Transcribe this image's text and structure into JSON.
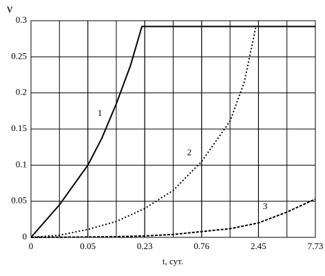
{
  "chart_data": {
    "type": "line",
    "y_label": "ν",
    "x_label": "t, сут.",
    "xlim": [
      0,
      10
    ],
    "ylim": [
      0,
      0.3
    ],
    "xticks": [
      {
        "value": 0,
        "label": "0"
      },
      {
        "value": 2,
        "label": "0.05"
      },
      {
        "value": 4,
        "label": "0.23"
      },
      {
        "value": 6,
        "label": "0.76"
      },
      {
        "value": 8,
        "label": "2.45"
      },
      {
        "value": 10,
        "label": "7.73"
      }
    ],
    "yticks": [
      0,
      0.05,
      0.1,
      0.15,
      0.2,
      0.25,
      0.3
    ],
    "grid": true,
    "series": [
      {
        "name": "1",
        "color": "#000000",
        "style": "solid",
        "x": [
          0,
          1,
          2,
          2.5,
          3,
          3.5,
          3.9,
          10
        ],
        "values": [
          0,
          0.045,
          0.1,
          0.138,
          0.185,
          0.238,
          0.292,
          0.292
        ]
      },
      {
        "name": "2",
        "color": "#000000",
        "style": "dotted",
        "x": [
          0,
          1,
          2,
          3,
          4,
          5,
          6,
          7,
          7.5,
          7.9
        ],
        "values": [
          0,
          0.003,
          0.011,
          0.022,
          0.04,
          0.065,
          0.105,
          0.161,
          0.215,
          0.29
        ]
      },
      {
        "name": "3",
        "color": "#000000",
        "style": "dashed",
        "x": [
          0,
          2,
          3,
          4,
          5,
          6,
          7,
          8,
          9,
          10
        ],
        "values": [
          0,
          0.0005,
          0.001,
          0.002,
          0.004,
          0.008,
          0.012,
          0.02,
          0.035,
          0.053
        ]
      }
    ]
  }
}
